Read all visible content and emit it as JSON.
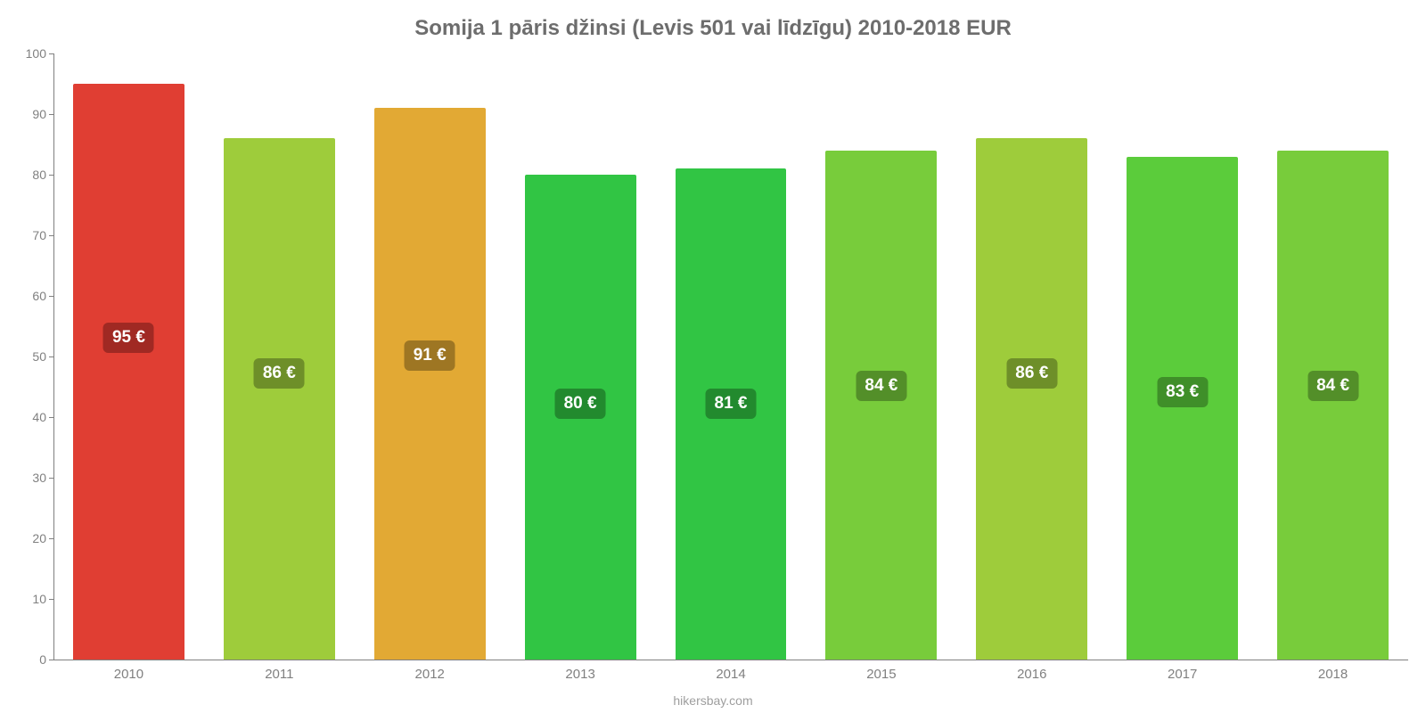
{
  "chart": {
    "type": "bar",
    "title": "Somija 1 pāris džinsi (Levis 501 vai līdzīgu) 2010-2018 EUR",
    "title_fontsize": 24,
    "title_color": "#6d6d6d",
    "background_color": "#ffffff",
    "axis_color": "#808080",
    "label_fontsize": 15,
    "footer": "hikersbay.com",
    "footer_color": "#9e9e9e",
    "ylim": [
      0,
      100
    ],
    "ytick_step": 10,
    "bar_width_ratio": 0.74,
    "badge_fontsize": 19,
    "categories": [
      "2010",
      "2011",
      "2012",
      "2013",
      "2014",
      "2015",
      "2016",
      "2017",
      "2018"
    ],
    "bars": [
      {
        "value": 95,
        "label": "95 €",
        "bar_color": "#e03e33",
        "badge_color": "#a02923",
        "badge_y": 53
      },
      {
        "value": 86,
        "label": "86 €",
        "bar_color": "#9ecc3b",
        "badge_color": "#6e8f29",
        "badge_y": 47
      },
      {
        "value": 91,
        "label": "91 €",
        "bar_color": "#e2a934",
        "badge_color": "#9e7623",
        "badge_y": 50
      },
      {
        "value": 80,
        "label": "80 €",
        "bar_color": "#31c544",
        "badge_color": "#228a2e",
        "badge_y": 42
      },
      {
        "value": 81,
        "label": "81 €",
        "bar_color": "#31c544",
        "badge_color": "#228a2e",
        "badge_y": 42
      },
      {
        "value": 84,
        "label": "84 €",
        "bar_color": "#78cc3b",
        "badge_color": "#538f29",
        "badge_y": 45
      },
      {
        "value": 86,
        "label": "86 €",
        "bar_color": "#9ecc3b",
        "badge_color": "#6e8f29",
        "badge_y": 47
      },
      {
        "value": 83,
        "label": "83 €",
        "bar_color": "#5bcc3b",
        "badge_color": "#3f8f29",
        "badge_y": 44
      },
      {
        "value": 84,
        "label": "84 €",
        "bar_color": "#78cc3b",
        "badge_color": "#538f29",
        "badge_y": 45
      }
    ]
  }
}
